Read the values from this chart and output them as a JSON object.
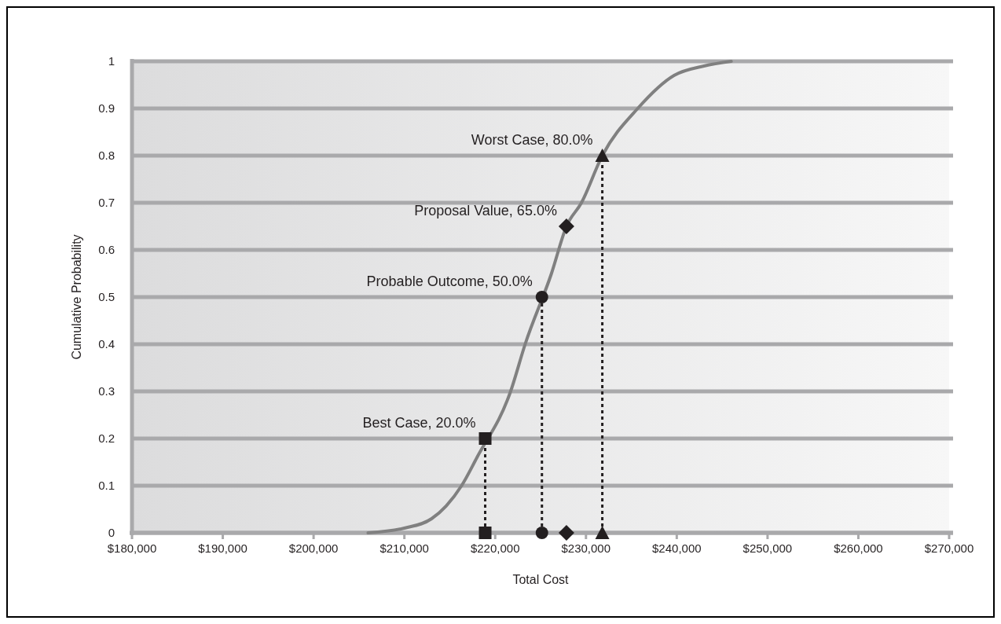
{
  "chart_data": {
    "type": "line",
    "xlabel": "Total Cost",
    "ylabel": "Cumulative Probability",
    "xlim": [
      180000,
      270000
    ],
    "xticks": [
      {
        "value": 180000,
        "label": "$180,000"
      },
      {
        "value": 190000,
        "label": "$190,000"
      },
      {
        "value": 200000,
        "label": "$200,000"
      },
      {
        "value": 210000,
        "label": "$210,000"
      },
      {
        "value": 220000,
        "label": "$220,000"
      },
      {
        "value": 230000,
        "label": "$230,000"
      },
      {
        "value": 240000,
        "label": "$240,000"
      },
      {
        "value": 250000,
        "label": "$250,000"
      },
      {
        "value": 260000,
        "label": "$260,000"
      },
      {
        "value": 270000,
        "label": "$270,000"
      }
    ],
    "ylim": [
      0,
      1
    ],
    "yticks": [
      0,
      0.1,
      0.2,
      0.3,
      0.4,
      0.5,
      0.6,
      0.7,
      0.8,
      0.9,
      1
    ],
    "grid": "y",
    "series": [
      {
        "color": "#808080",
        "marker": "none",
        "line_style": "solid",
        "x": [
          206000,
          210000,
          213000,
          214600,
          216300,
          218000,
          221700,
          223300,
          226200,
          227850,
          229500,
          231800,
          235700,
          239700,
          243000,
          246000
        ],
        "values": [
          0,
          0.01,
          0.03,
          0.057,
          0.1,
          0.16,
          0.3,
          0.4,
          0.55,
          0.65,
          0.7,
          0.8,
          0.9,
          0.97,
          0.99,
          1
        ]
      },
      {
        "color": "#231f20",
        "marker": "square",
        "line_style": "dotted",
        "x": [
          218900,
          218900
        ],
        "values": [
          0,
          0.2
        ]
      },
      {
        "color": "#231f20",
        "marker": "circle",
        "line_style": "dotted",
        "x": [
          225150,
          225150
        ],
        "values": [
          0,
          0.5
        ]
      },
      {
        "type": "scatter",
        "color": "#231f20",
        "marker": "diamond",
        "x": [
          227850,
          227850
        ],
        "values": [
          0,
          0.65
        ]
      },
      {
        "color": "#231f20",
        "marker": "triangle",
        "line_style": "dotted",
        "x": [
          231800,
          231800
        ],
        "values": [
          0,
          0.8
        ]
      }
    ],
    "annotations": [
      {
        "text": "Best Case, 20.0%",
        "x": 218900,
        "y": 0.2
      },
      {
        "text": "Probable Outcome, 50.0%",
        "x": 225150,
        "y": 0.5
      },
      {
        "text": "Proposal Value, 65.0%",
        "x": 227850,
        "y": 0.65
      },
      {
        "text": "Worst Case, 80.0%",
        "x": 231800,
        "y": 0.8
      }
    ]
  }
}
